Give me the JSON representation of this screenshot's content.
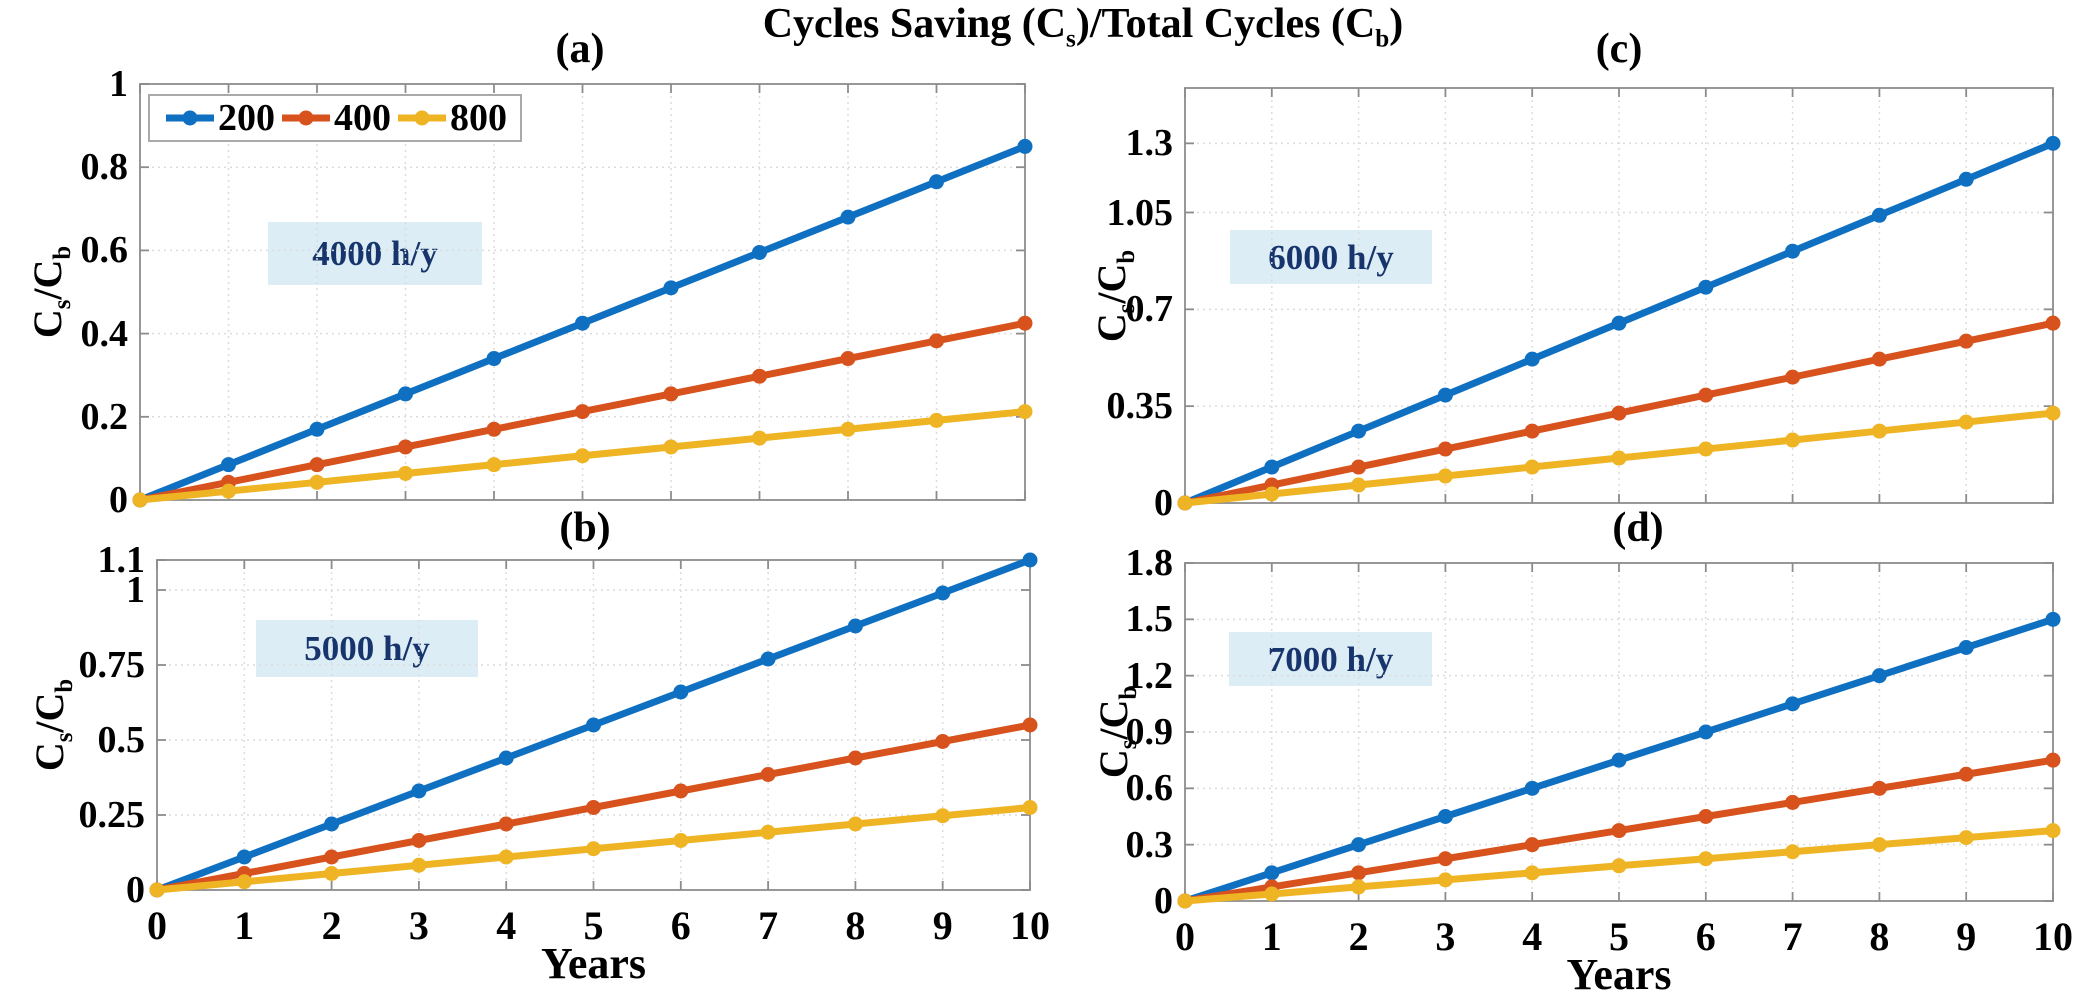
{
  "figure": {
    "title": "Cycles Saving (Cs)/Total Cycles (Cb)",
    "title_parts": {
      "p1": "Cycles Saving (C",
      "s1": "s",
      "p2": ")/Total Cycles (C",
      "s2": "b",
      "p3": ")"
    },
    "ylabel": "Cs/Cb",
    "ylabel_parts": {
      "c1": "C",
      "s1": "s",
      "c2": "/C",
      "s2": "b"
    },
    "background": "#ffffff"
  },
  "colors": {
    "series_200": "#0f70c2",
    "series_400": "#d7521c",
    "series_800": "#eeb424",
    "annotation_text": "#17356c",
    "annotation_bg": "#dcedf5",
    "axis": "#8c8c8c",
    "grid": "#dcdcdc",
    "text": "#000000"
  },
  "legend": {
    "items": [
      "200",
      "400",
      "800"
    ],
    "position": "top-left of panel (a)",
    "orientation": "horizontal"
  },
  "chart_data": [
    {
      "id": "a",
      "type": "line",
      "panel_label": "(a)",
      "annotation": "4000 h/y",
      "xlabel": "",
      "ylabel": "Cs/Cb",
      "grid": true,
      "xlim": [
        0,
        10
      ],
      "ylim": [
        0,
        1
      ],
      "x": [
        0,
        1,
        2,
        3,
        4,
        5,
        6,
        7,
        8,
        9,
        10
      ],
      "xticks": [
        0,
        1,
        2,
        3,
        4,
        5,
        6,
        7,
        8,
        9,
        10
      ],
      "xtick_labels": [],
      "yticks": [
        0,
        0.2,
        0.4,
        0.6,
        0.8,
        1
      ],
      "ytick_labels": [
        "0",
        "0.2",
        "0.4",
        "0.6",
        "0.8",
        "1"
      ],
      "series": [
        {
          "name": "200",
          "color": "#0f70c2",
          "values": [
            0,
            0.085,
            0.17,
            0.255,
            0.34,
            0.425,
            0.51,
            0.595,
            0.68,
            0.765,
            0.85
          ]
        },
        {
          "name": "400",
          "color": "#d7521c",
          "values": [
            0,
            0.0425,
            0.085,
            0.1275,
            0.17,
            0.2125,
            0.255,
            0.2975,
            0.34,
            0.3825,
            0.425
          ]
        },
        {
          "name": "800",
          "color": "#eeb424",
          "values": [
            0,
            0.0213,
            0.0425,
            0.0638,
            0.085,
            0.1063,
            0.1275,
            0.1488,
            0.17,
            0.1913,
            0.2125
          ]
        }
      ]
    },
    {
      "id": "b",
      "type": "line",
      "panel_label": "(b)",
      "annotation": "5000 h/y",
      "xlabel": "Years",
      "ylabel": "Cs/Cb",
      "grid": true,
      "xlim": [
        0,
        10
      ],
      "ylim": [
        0,
        1.1
      ],
      "x": [
        0,
        1,
        2,
        3,
        4,
        5,
        6,
        7,
        8,
        9,
        10
      ],
      "xticks": [
        0,
        1,
        2,
        3,
        4,
        5,
        6,
        7,
        8,
        9,
        10
      ],
      "xtick_labels": [
        "0",
        "1",
        "2",
        "3",
        "4",
        "5",
        "6",
        "7",
        "8",
        "9",
        "10"
      ],
      "yticks": [
        0,
        0.25,
        0.5,
        0.75,
        1,
        1.1
      ],
      "ytick_labels": [
        "0",
        "0.25",
        "0.5",
        "0.75",
        "1",
        "1.1"
      ],
      "series": [
        {
          "name": "200",
          "color": "#0f70c2",
          "values": [
            0,
            0.11,
            0.22,
            0.33,
            0.44,
            0.55,
            0.66,
            0.77,
            0.88,
            0.99,
            1.1
          ]
        },
        {
          "name": "400",
          "color": "#d7521c",
          "values": [
            0,
            0.055,
            0.11,
            0.165,
            0.22,
            0.275,
            0.33,
            0.385,
            0.44,
            0.495,
            0.55
          ]
        },
        {
          "name": "800",
          "color": "#eeb424",
          "values": [
            0,
            0.0275,
            0.055,
            0.0825,
            0.11,
            0.1375,
            0.165,
            0.1925,
            0.22,
            0.2475,
            0.275
          ]
        }
      ]
    },
    {
      "id": "c",
      "type": "line",
      "panel_label": "(c)",
      "annotation": "6000 h/y",
      "xlabel": "",
      "ylabel": "Cs/Cb",
      "grid": true,
      "xlim": [
        0,
        10
      ],
      "ylim": [
        0,
        1.5
      ],
      "x": [
        0,
        1,
        2,
        3,
        4,
        5,
        6,
        7,
        8,
        9,
        10
      ],
      "xticks": [
        0,
        1,
        2,
        3,
        4,
        5,
        6,
        7,
        8,
        9,
        10
      ],
      "xtick_labels": [],
      "yticks": [
        0,
        0.35,
        0.7,
        1.05,
        1.3
      ],
      "ytick_labels": [
        "0",
        "0.35",
        "0.7",
        "1.05",
        "1.3"
      ],
      "series": [
        {
          "name": "200",
          "color": "#0f70c2",
          "values": [
            0,
            0.13,
            0.26,
            0.39,
            0.52,
            0.65,
            0.78,
            0.91,
            1.04,
            1.17,
            1.3
          ]
        },
        {
          "name": "400",
          "color": "#d7521c",
          "values": [
            0,
            0.065,
            0.13,
            0.195,
            0.26,
            0.325,
            0.39,
            0.455,
            0.52,
            0.585,
            0.65
          ]
        },
        {
          "name": "800",
          "color": "#eeb424",
          "values": [
            0,
            0.0325,
            0.065,
            0.0975,
            0.13,
            0.1625,
            0.195,
            0.2275,
            0.26,
            0.2925,
            0.325
          ]
        }
      ]
    },
    {
      "id": "d",
      "type": "line",
      "panel_label": "(d)",
      "annotation": "7000 h/y",
      "xlabel": "Years",
      "ylabel": "Cs/Cb",
      "grid": true,
      "xlim": [
        0,
        10
      ],
      "ylim": [
        0,
        1.8
      ],
      "x": [
        0,
        1,
        2,
        3,
        4,
        5,
        6,
        7,
        8,
        9,
        10
      ],
      "xticks": [
        0,
        1,
        2,
        3,
        4,
        5,
        6,
        7,
        8,
        9,
        10
      ],
      "xtick_labels": [
        "0",
        "1",
        "2",
        "3",
        "4",
        "5",
        "6",
        "7",
        "8",
        "9",
        "10"
      ],
      "yticks": [
        0,
        0.3,
        0.6,
        0.9,
        1.2,
        1.5,
        1.8
      ],
      "ytick_labels": [
        "0",
        "0.3",
        "0.6",
        "0.9",
        "1.2",
        "1.5",
        "1.8"
      ],
      "series": [
        {
          "name": "200",
          "color": "#0f70c2",
          "values": [
            0,
            0.15,
            0.3,
            0.45,
            0.6,
            0.75,
            0.9,
            1.05,
            1.2,
            1.35,
            1.5
          ]
        },
        {
          "name": "400",
          "color": "#d7521c",
          "values": [
            0,
            0.075,
            0.15,
            0.225,
            0.3,
            0.375,
            0.45,
            0.525,
            0.6,
            0.675,
            0.75
          ]
        },
        {
          "name": "800",
          "color": "#eeb424",
          "values": [
            0,
            0.0375,
            0.075,
            0.1125,
            0.15,
            0.1875,
            0.225,
            0.2625,
            0.3,
            0.3375,
            0.375
          ]
        }
      ]
    }
  ]
}
